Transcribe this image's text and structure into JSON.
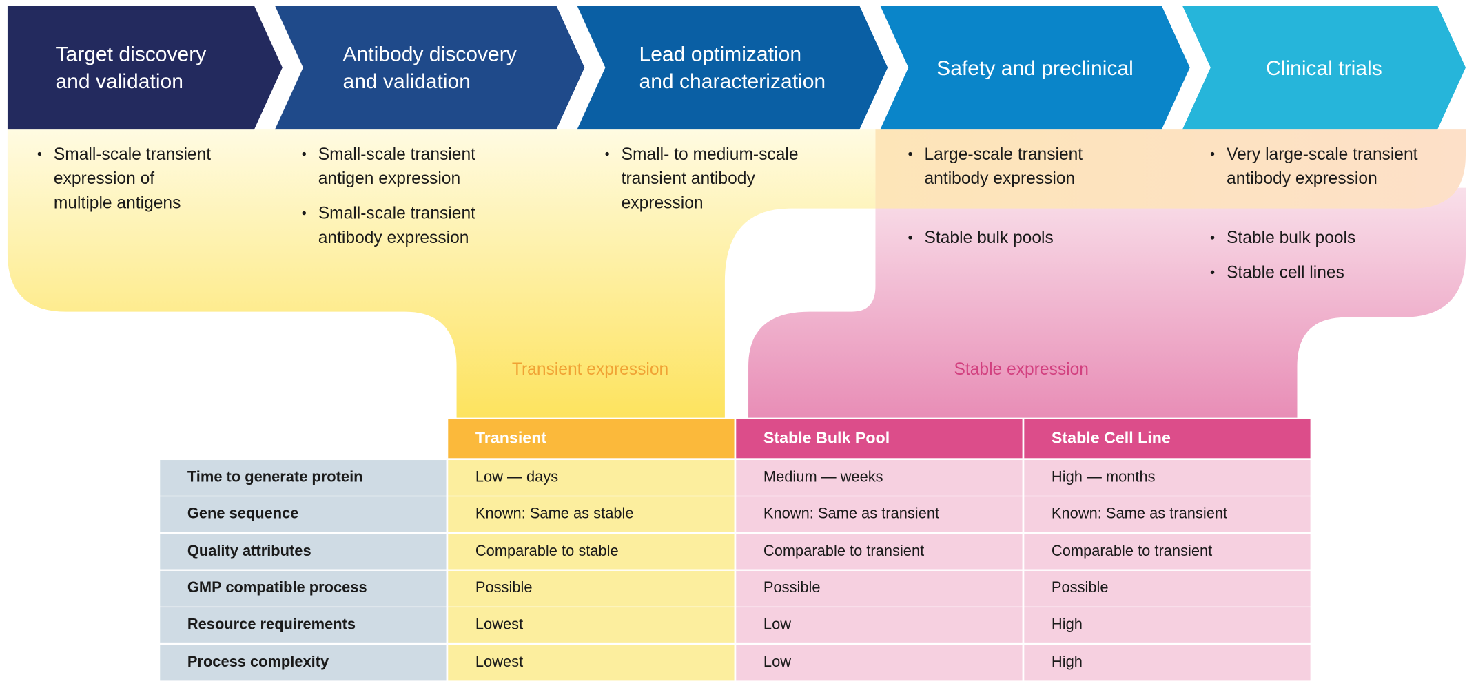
{
  "stages": [
    {
      "title": "Target discovery\nand validation",
      "transient": [
        "Small-scale transient\nexpression of\nmultiple antigens"
      ],
      "stable": []
    },
    {
      "title": "Antibody discovery\nand validation",
      "transient": [
        "Small-scale transient\nantigen expression",
        "Small-scale transient\nantibody expression"
      ],
      "stable": []
    },
    {
      "title": "Lead optimization\nand characterization",
      "transient": [
        "Small- to medium-scale\ntransient antibody\nexpression"
      ],
      "stable": []
    },
    {
      "title": "Safety and preclinical",
      "transient": [
        "Large-scale transient\nantibody expression"
      ],
      "stable": [
        "Stable bulk pools"
      ]
    },
    {
      "title": "Clinical trials",
      "transient": [
        "Very large-scale transient\nantibody expression"
      ],
      "stable": [
        "Stable bulk pools",
        "Stable cell lines"
      ]
    }
  ],
  "bands": {
    "transient": "Transient expression",
    "stable": "Stable expression"
  },
  "table": {
    "header": [
      "Transient",
      "Stable Bulk Pool",
      "Stable Cell Line"
    ],
    "rows": [
      [
        "Time to generate protein",
        "Low — days",
        "Medium — weeks",
        "High — months"
      ],
      [
        "Gene sequence",
        "Known: Same as stable",
        "Known: Same as transient",
        "Known: Same as transient"
      ],
      [
        "Quality attributes",
        "Comparable to stable",
        "Comparable to transient",
        "Comparable to transient"
      ],
      [
        "GMP compatible process",
        "Possible",
        "Possible",
        "Possible"
      ],
      [
        "Resource requirements",
        "Lowest",
        "Low",
        "High"
      ],
      [
        "Process complexity",
        "Lowest",
        "Low",
        "High"
      ]
    ]
  }
}
